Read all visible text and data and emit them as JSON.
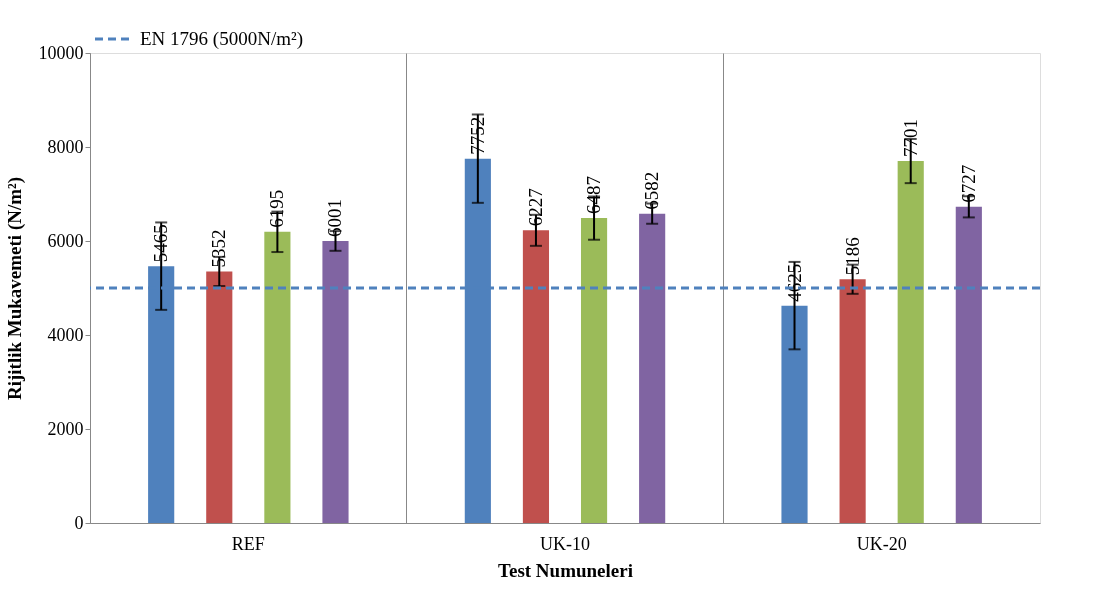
{
  "chart_data": {
    "type": "bar",
    "categories": [
      "REF",
      "UK-10",
      "UK-20"
    ],
    "xlabel": "Test Numuneleri",
    "ylabel": "Rijitlik  Mukavemeti  (N/m²)",
    "series": [
      {
        "color": "#4f81bd",
        "values": [
          5465,
          7752,
          4625
        ],
        "errors": [
          930,
          940,
          930
        ]
      },
      {
        "color": "#c0504d",
        "values": [
          5352,
          6227,
          5186
        ],
        "errors": [
          310,
          330,
          310
        ]
      },
      {
        "color": "#9bbb59",
        "values": [
          6195,
          6487,
          7701
        ],
        "errors": [
          430,
          460,
          470
        ]
      },
      {
        "color": "#8064a2",
        "values": [
          6001,
          6582,
          6727
        ],
        "errors": [
          210,
          215,
          225
        ]
      }
    ],
    "ylim": [
      0,
      10000
    ],
    "yticks": [
      0,
      2000,
      4000,
      6000,
      8000,
      10000
    ],
    "ref_lines": [
      {
        "axis": "y",
        "value": 5000,
        "label": "EN 1796 (5000N/m²)",
        "color": "#4f81bd",
        "line_style": "dashed"
      }
    ],
    "data_labels": true,
    "grid": "x",
    "legend": "top left"
  }
}
